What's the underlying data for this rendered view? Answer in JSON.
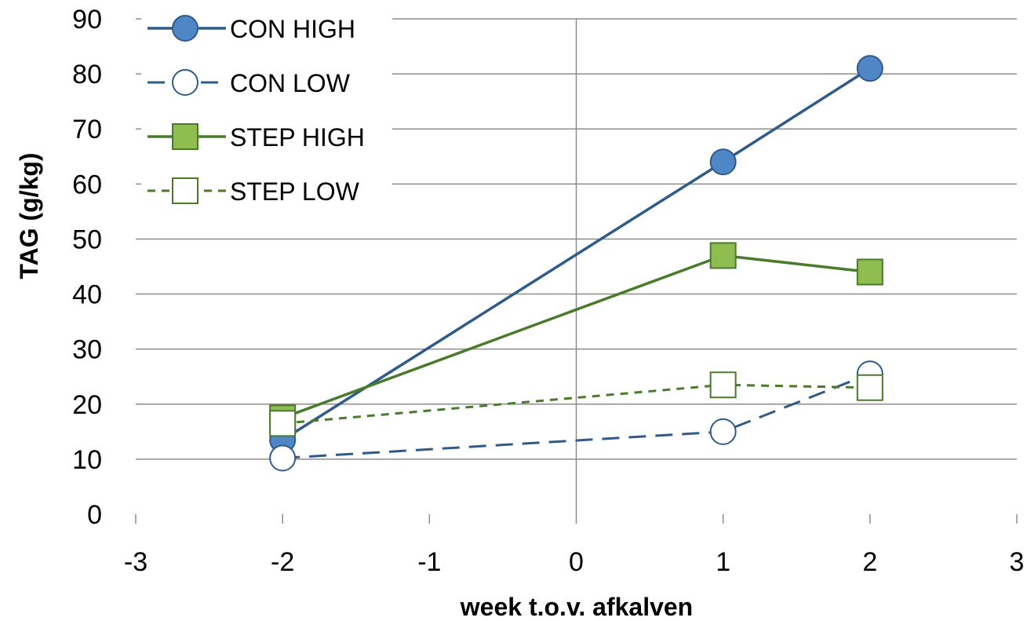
{
  "chart_data": {
    "type": "line",
    "xlabel": "week t.o.v. afkalven",
    "ylabel": "TAG (g/kg)",
    "xlim": [
      -3,
      3
    ],
    "ylim": [
      0,
      90
    ],
    "x_ticks": [
      "-3",
      "-2",
      "-1",
      "0",
      "1",
      "2",
      "3"
    ],
    "y_ticks": [
      "0",
      "10",
      "20",
      "30",
      "40",
      "50",
      "60",
      "70",
      "80",
      "90"
    ],
    "grid": "horizontal gridlines, vertical line at x = 0",
    "legend_position": "top-left",
    "series": [
      {
        "name": "CON HIGH",
        "x": [
          -2,
          1,
          2
        ],
        "y": [
          13.5,
          64,
          81
        ],
        "color": "#2e5b8a",
        "line": "solid",
        "marker": "filled-circle",
        "marker_fill": "#4f87c6"
      },
      {
        "name": "CON LOW",
        "x": [
          -2,
          1,
          2
        ],
        "y": [
          10.2,
          15,
          25.5
        ],
        "color": "#2e5b8a",
        "line": "dashed",
        "marker": "open-circle",
        "marker_fill": "#ffffff"
      },
      {
        "name": "STEP HIGH",
        "x": [
          -2,
          1,
          2
        ],
        "y": [
          17.5,
          47,
          44
        ],
        "color": "#4a7a2c",
        "line": "solid",
        "marker": "filled-square",
        "marker_fill": "#8fbd50"
      },
      {
        "name": "STEP LOW",
        "x": [
          -2,
          1,
          2
        ],
        "y": [
          16.5,
          23.5,
          23
        ],
        "color": "#4a7a2c",
        "line": "dashed",
        "marker": "open-square",
        "marker_fill": "#ffffff"
      }
    ]
  }
}
